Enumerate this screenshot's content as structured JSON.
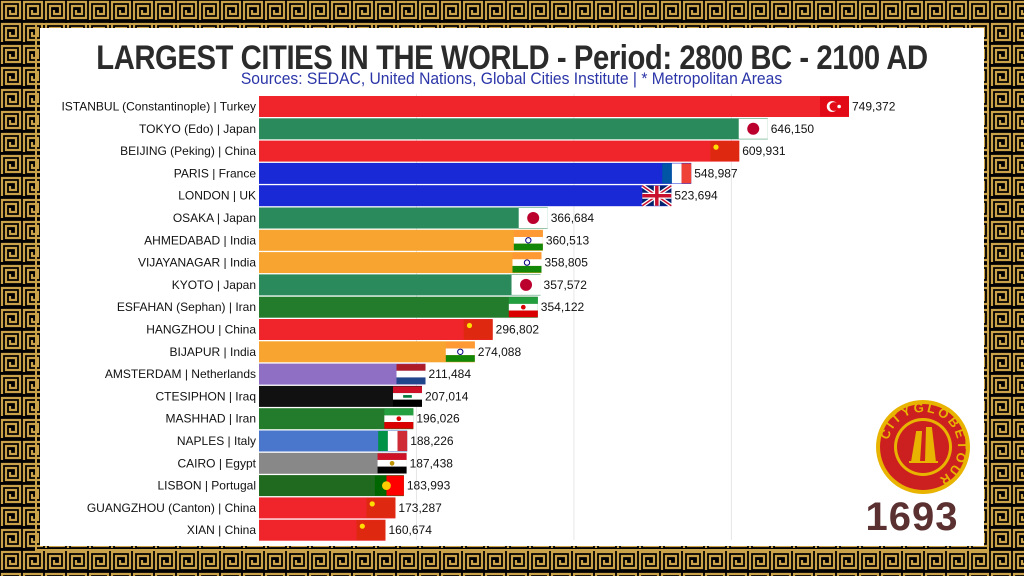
{
  "header": {
    "title": "LARGEST CITIES IN THE WORLD - Period: 2800 BC - 2100 AD",
    "subtitle": "Sources: SEDAC, United Nations, Global Cities Institute | * Metropolitan Areas"
  },
  "year_label": "1693",
  "logo": {
    "text": "CITYGLOBETOUR",
    "icon": "globe-logo-icon"
  },
  "colors": {
    "frame_bg": "#000000",
    "meander_gold": "#c9a24a",
    "panel_bg": "#ffffff",
    "subtitle": "#2b35a8"
  },
  "chart_data": {
    "type": "bar",
    "orientation": "horizontal",
    "xlim": [
      0,
      800000
    ],
    "grid": true,
    "categories": [
      "ISTANBUL (Constantinople) | Turkey",
      "TOKYO (Edo) | Japan",
      "BEIJING (Peking) | China",
      "PARIS | France",
      "LONDON | UK",
      "OSAKA | Japan",
      "AHMEDABAD | India",
      "VIJAYANAGAR | India",
      "KYOTO | Japan",
      "ESFAHAN (Sephan) | Iran",
      "HANGZHOU | China",
      "BIJAPUR | India",
      "AMSTERDAM | Netherlands",
      "CTESIPHON | Iraq",
      "MASHHAD | Iran",
      "NAPLES | Italy",
      "CAIRO | Egypt",
      "LISBON | Portugal",
      "GUANGZHOU (Canton) | China",
      "XIAN | China"
    ],
    "values": [
      749372,
      646150,
      609931,
      548987,
      523694,
      366684,
      360513,
      358805,
      357572,
      354122,
      296802,
      274088,
      211484,
      207014,
      196026,
      188226,
      187438,
      183993,
      173287,
      160674
    ],
    "value_labels": [
      "749,372",
      "646,150",
      "609,931",
      "548,987",
      "523,694",
      "366,684",
      "360,513",
      "358,805",
      "357,572",
      "354,122",
      "296,802",
      "274,088",
      "211,484",
      "207,014",
      "196,026",
      "188,226",
      "187,438",
      "183,993",
      "173,287",
      "160,674"
    ],
    "bar_colors": [
      "#f0242b",
      "#2a8a5b",
      "#f0242b",
      "#1a29d6",
      "#1a29d6",
      "#2a8a5b",
      "#f7a530",
      "#f7a530",
      "#2a8a5b",
      "#237b2c",
      "#f0242b",
      "#f7a530",
      "#8e6fc4",
      "#111111",
      "#237b2c",
      "#4a77cc",
      "#888888",
      "#1f6a1f",
      "#f0242b",
      "#f0242b"
    ],
    "flags": [
      "turkey",
      "japan",
      "china",
      "france",
      "uk",
      "japan",
      "india",
      "india",
      "japan",
      "iran",
      "china",
      "india",
      "netherlands",
      "iraq",
      "iran",
      "italy",
      "egypt",
      "portugal",
      "china",
      "china"
    ]
  }
}
